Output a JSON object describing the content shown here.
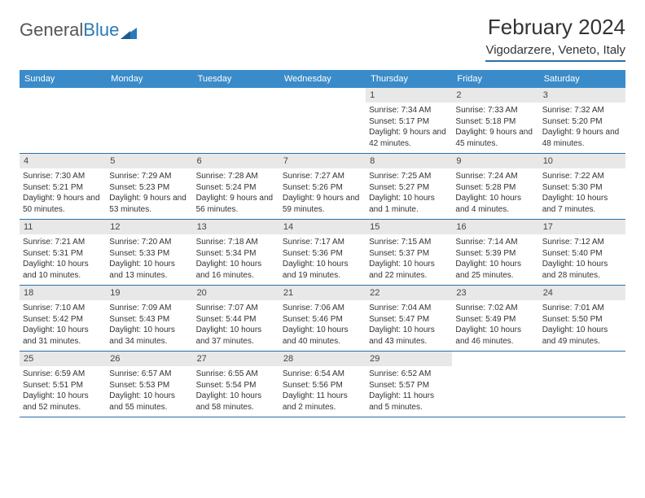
{
  "brand": {
    "part1": "General",
    "part2": "Blue"
  },
  "title": "February 2024",
  "location": "Vigodarzere, Veneto, Italy",
  "colors": {
    "header_bar": "#3a8bc9",
    "rule": "#2a6fa8",
    "daynum_bg": "#e8e8e8",
    "text": "#333333",
    "logo_gray": "#555555",
    "logo_blue": "#2a7ab9",
    "white": "#ffffff"
  },
  "weekdays": [
    "Sunday",
    "Monday",
    "Tuesday",
    "Wednesday",
    "Thursday",
    "Friday",
    "Saturday"
  ],
  "weeks": [
    [
      {
        "n": "",
        "empty": true
      },
      {
        "n": "",
        "empty": true
      },
      {
        "n": "",
        "empty": true
      },
      {
        "n": "",
        "empty": true
      },
      {
        "n": "1",
        "sunrise": "Sunrise: 7:34 AM",
        "sunset": "Sunset: 5:17 PM",
        "daylight": "Daylight: 9 hours and 42 minutes."
      },
      {
        "n": "2",
        "sunrise": "Sunrise: 7:33 AM",
        "sunset": "Sunset: 5:18 PM",
        "daylight": "Daylight: 9 hours and 45 minutes."
      },
      {
        "n": "3",
        "sunrise": "Sunrise: 7:32 AM",
        "sunset": "Sunset: 5:20 PM",
        "daylight": "Daylight: 9 hours and 48 minutes."
      }
    ],
    [
      {
        "n": "4",
        "sunrise": "Sunrise: 7:30 AM",
        "sunset": "Sunset: 5:21 PM",
        "daylight": "Daylight: 9 hours and 50 minutes."
      },
      {
        "n": "5",
        "sunrise": "Sunrise: 7:29 AM",
        "sunset": "Sunset: 5:23 PM",
        "daylight": "Daylight: 9 hours and 53 minutes."
      },
      {
        "n": "6",
        "sunrise": "Sunrise: 7:28 AM",
        "sunset": "Sunset: 5:24 PM",
        "daylight": "Daylight: 9 hours and 56 minutes."
      },
      {
        "n": "7",
        "sunrise": "Sunrise: 7:27 AM",
        "sunset": "Sunset: 5:26 PM",
        "daylight": "Daylight: 9 hours and 59 minutes."
      },
      {
        "n": "8",
        "sunrise": "Sunrise: 7:25 AM",
        "sunset": "Sunset: 5:27 PM",
        "daylight": "Daylight: 10 hours and 1 minute."
      },
      {
        "n": "9",
        "sunrise": "Sunrise: 7:24 AM",
        "sunset": "Sunset: 5:28 PM",
        "daylight": "Daylight: 10 hours and 4 minutes."
      },
      {
        "n": "10",
        "sunrise": "Sunrise: 7:22 AM",
        "sunset": "Sunset: 5:30 PM",
        "daylight": "Daylight: 10 hours and 7 minutes."
      }
    ],
    [
      {
        "n": "11",
        "sunrise": "Sunrise: 7:21 AM",
        "sunset": "Sunset: 5:31 PM",
        "daylight": "Daylight: 10 hours and 10 minutes."
      },
      {
        "n": "12",
        "sunrise": "Sunrise: 7:20 AM",
        "sunset": "Sunset: 5:33 PM",
        "daylight": "Daylight: 10 hours and 13 minutes."
      },
      {
        "n": "13",
        "sunrise": "Sunrise: 7:18 AM",
        "sunset": "Sunset: 5:34 PM",
        "daylight": "Daylight: 10 hours and 16 minutes."
      },
      {
        "n": "14",
        "sunrise": "Sunrise: 7:17 AM",
        "sunset": "Sunset: 5:36 PM",
        "daylight": "Daylight: 10 hours and 19 minutes."
      },
      {
        "n": "15",
        "sunrise": "Sunrise: 7:15 AM",
        "sunset": "Sunset: 5:37 PM",
        "daylight": "Daylight: 10 hours and 22 minutes."
      },
      {
        "n": "16",
        "sunrise": "Sunrise: 7:14 AM",
        "sunset": "Sunset: 5:39 PM",
        "daylight": "Daylight: 10 hours and 25 minutes."
      },
      {
        "n": "17",
        "sunrise": "Sunrise: 7:12 AM",
        "sunset": "Sunset: 5:40 PM",
        "daylight": "Daylight: 10 hours and 28 minutes."
      }
    ],
    [
      {
        "n": "18",
        "sunrise": "Sunrise: 7:10 AM",
        "sunset": "Sunset: 5:42 PM",
        "daylight": "Daylight: 10 hours and 31 minutes."
      },
      {
        "n": "19",
        "sunrise": "Sunrise: 7:09 AM",
        "sunset": "Sunset: 5:43 PM",
        "daylight": "Daylight: 10 hours and 34 minutes."
      },
      {
        "n": "20",
        "sunrise": "Sunrise: 7:07 AM",
        "sunset": "Sunset: 5:44 PM",
        "daylight": "Daylight: 10 hours and 37 minutes."
      },
      {
        "n": "21",
        "sunrise": "Sunrise: 7:06 AM",
        "sunset": "Sunset: 5:46 PM",
        "daylight": "Daylight: 10 hours and 40 minutes."
      },
      {
        "n": "22",
        "sunrise": "Sunrise: 7:04 AM",
        "sunset": "Sunset: 5:47 PM",
        "daylight": "Daylight: 10 hours and 43 minutes."
      },
      {
        "n": "23",
        "sunrise": "Sunrise: 7:02 AM",
        "sunset": "Sunset: 5:49 PM",
        "daylight": "Daylight: 10 hours and 46 minutes."
      },
      {
        "n": "24",
        "sunrise": "Sunrise: 7:01 AM",
        "sunset": "Sunset: 5:50 PM",
        "daylight": "Daylight: 10 hours and 49 minutes."
      }
    ],
    [
      {
        "n": "25",
        "sunrise": "Sunrise: 6:59 AM",
        "sunset": "Sunset: 5:51 PM",
        "daylight": "Daylight: 10 hours and 52 minutes."
      },
      {
        "n": "26",
        "sunrise": "Sunrise: 6:57 AM",
        "sunset": "Sunset: 5:53 PM",
        "daylight": "Daylight: 10 hours and 55 minutes."
      },
      {
        "n": "27",
        "sunrise": "Sunrise: 6:55 AM",
        "sunset": "Sunset: 5:54 PM",
        "daylight": "Daylight: 10 hours and 58 minutes."
      },
      {
        "n": "28",
        "sunrise": "Sunrise: 6:54 AM",
        "sunset": "Sunset: 5:56 PM",
        "daylight": "Daylight: 11 hours and 2 minutes."
      },
      {
        "n": "29",
        "sunrise": "Sunrise: 6:52 AM",
        "sunset": "Sunset: 5:57 PM",
        "daylight": "Daylight: 11 hours and 5 minutes."
      },
      {
        "n": "",
        "empty": true
      },
      {
        "n": "",
        "empty": true
      }
    ]
  ]
}
